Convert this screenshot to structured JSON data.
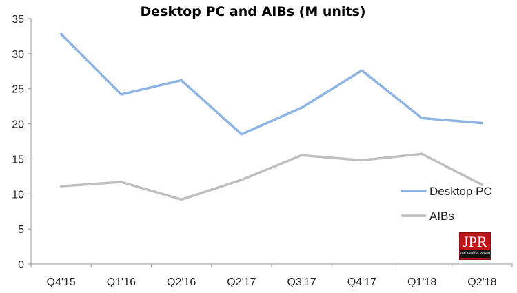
{
  "chart_data": {
    "type": "line",
    "title": "Desktop PC and AIBs (M units)",
    "categories": [
      "Q4'15",
      "Q1'16",
      "Q2'16",
      "Q2'17",
      "Q3'17",
      "Q4'17",
      "Q1'18",
      "Q2'18"
    ],
    "series": [
      {
        "name": "Desktop PC",
        "color": "#8eb4e3",
        "values": [
          32.8,
          24.2,
          26.2,
          18.5,
          22.3,
          27.6,
          20.8,
          20.1
        ]
      },
      {
        "name": "AIBs",
        "color": "#bfbfbf",
        "values": [
          11.1,
          11.7,
          9.2,
          12.0,
          15.5,
          14.8,
          15.7,
          11.3
        ]
      }
    ],
    "ylim": [
      0,
      35
    ],
    "yticks": [
      0,
      5,
      10,
      15,
      20,
      25,
      30,
      35
    ],
    "xlabel": "",
    "ylabel": "",
    "grid": false,
    "legend_position": "right"
  },
  "logo": {
    "name": "jpr-logo-icon",
    "main_text": "JPR",
    "sub_text": "Jon Peddie Research"
  }
}
